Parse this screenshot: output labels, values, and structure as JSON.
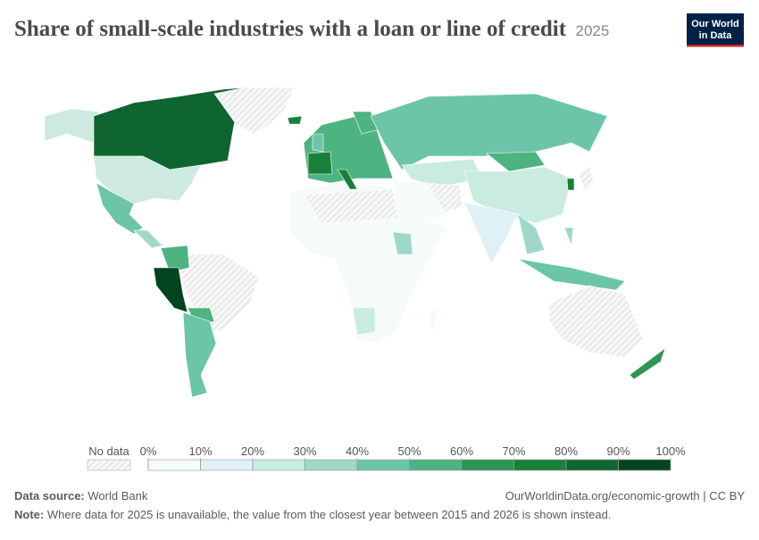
{
  "header": {
    "title": "Share of small-scale industries with a loan or line of credit",
    "year": "2025",
    "logo": [
      "Our World",
      "in Data"
    ]
  },
  "legend": {
    "no_data": "No data",
    "ticks": [
      {
        "value": 0,
        "label": "0%"
      },
      {
        "value": 10,
        "label": "10%"
      },
      {
        "value": 20,
        "label": "20%"
      },
      {
        "value": 30,
        "label": "30%"
      },
      {
        "value": 40,
        "label": "40%"
      },
      {
        "value": 50,
        "label": "50%"
      },
      {
        "value": 60,
        "label": "60%"
      },
      {
        "value": 70,
        "label": "70%"
      },
      {
        "value": 80,
        "label": "80%"
      },
      {
        "value": 90,
        "label": "90%"
      },
      {
        "value": 100,
        "label": "100%"
      }
    ],
    "colors": [
      "#f5fbf9",
      "#e0f1f6",
      "#c9ebe0",
      "#9fd8c8",
      "#6cc5a8",
      "#4db381",
      "#2e9552",
      "#1a7f3a",
      "#0f6530",
      "#03441f"
    ]
  },
  "footer": {
    "source_label": "Data source:",
    "source": "World Bank",
    "url": "OurWorldinData.org/economic-growth | CC BY",
    "note_label": "Note:",
    "note": "Where data for 2025 is unavailable, the value from the closest year between 2015 and 2026 is shown instead."
  }
}
